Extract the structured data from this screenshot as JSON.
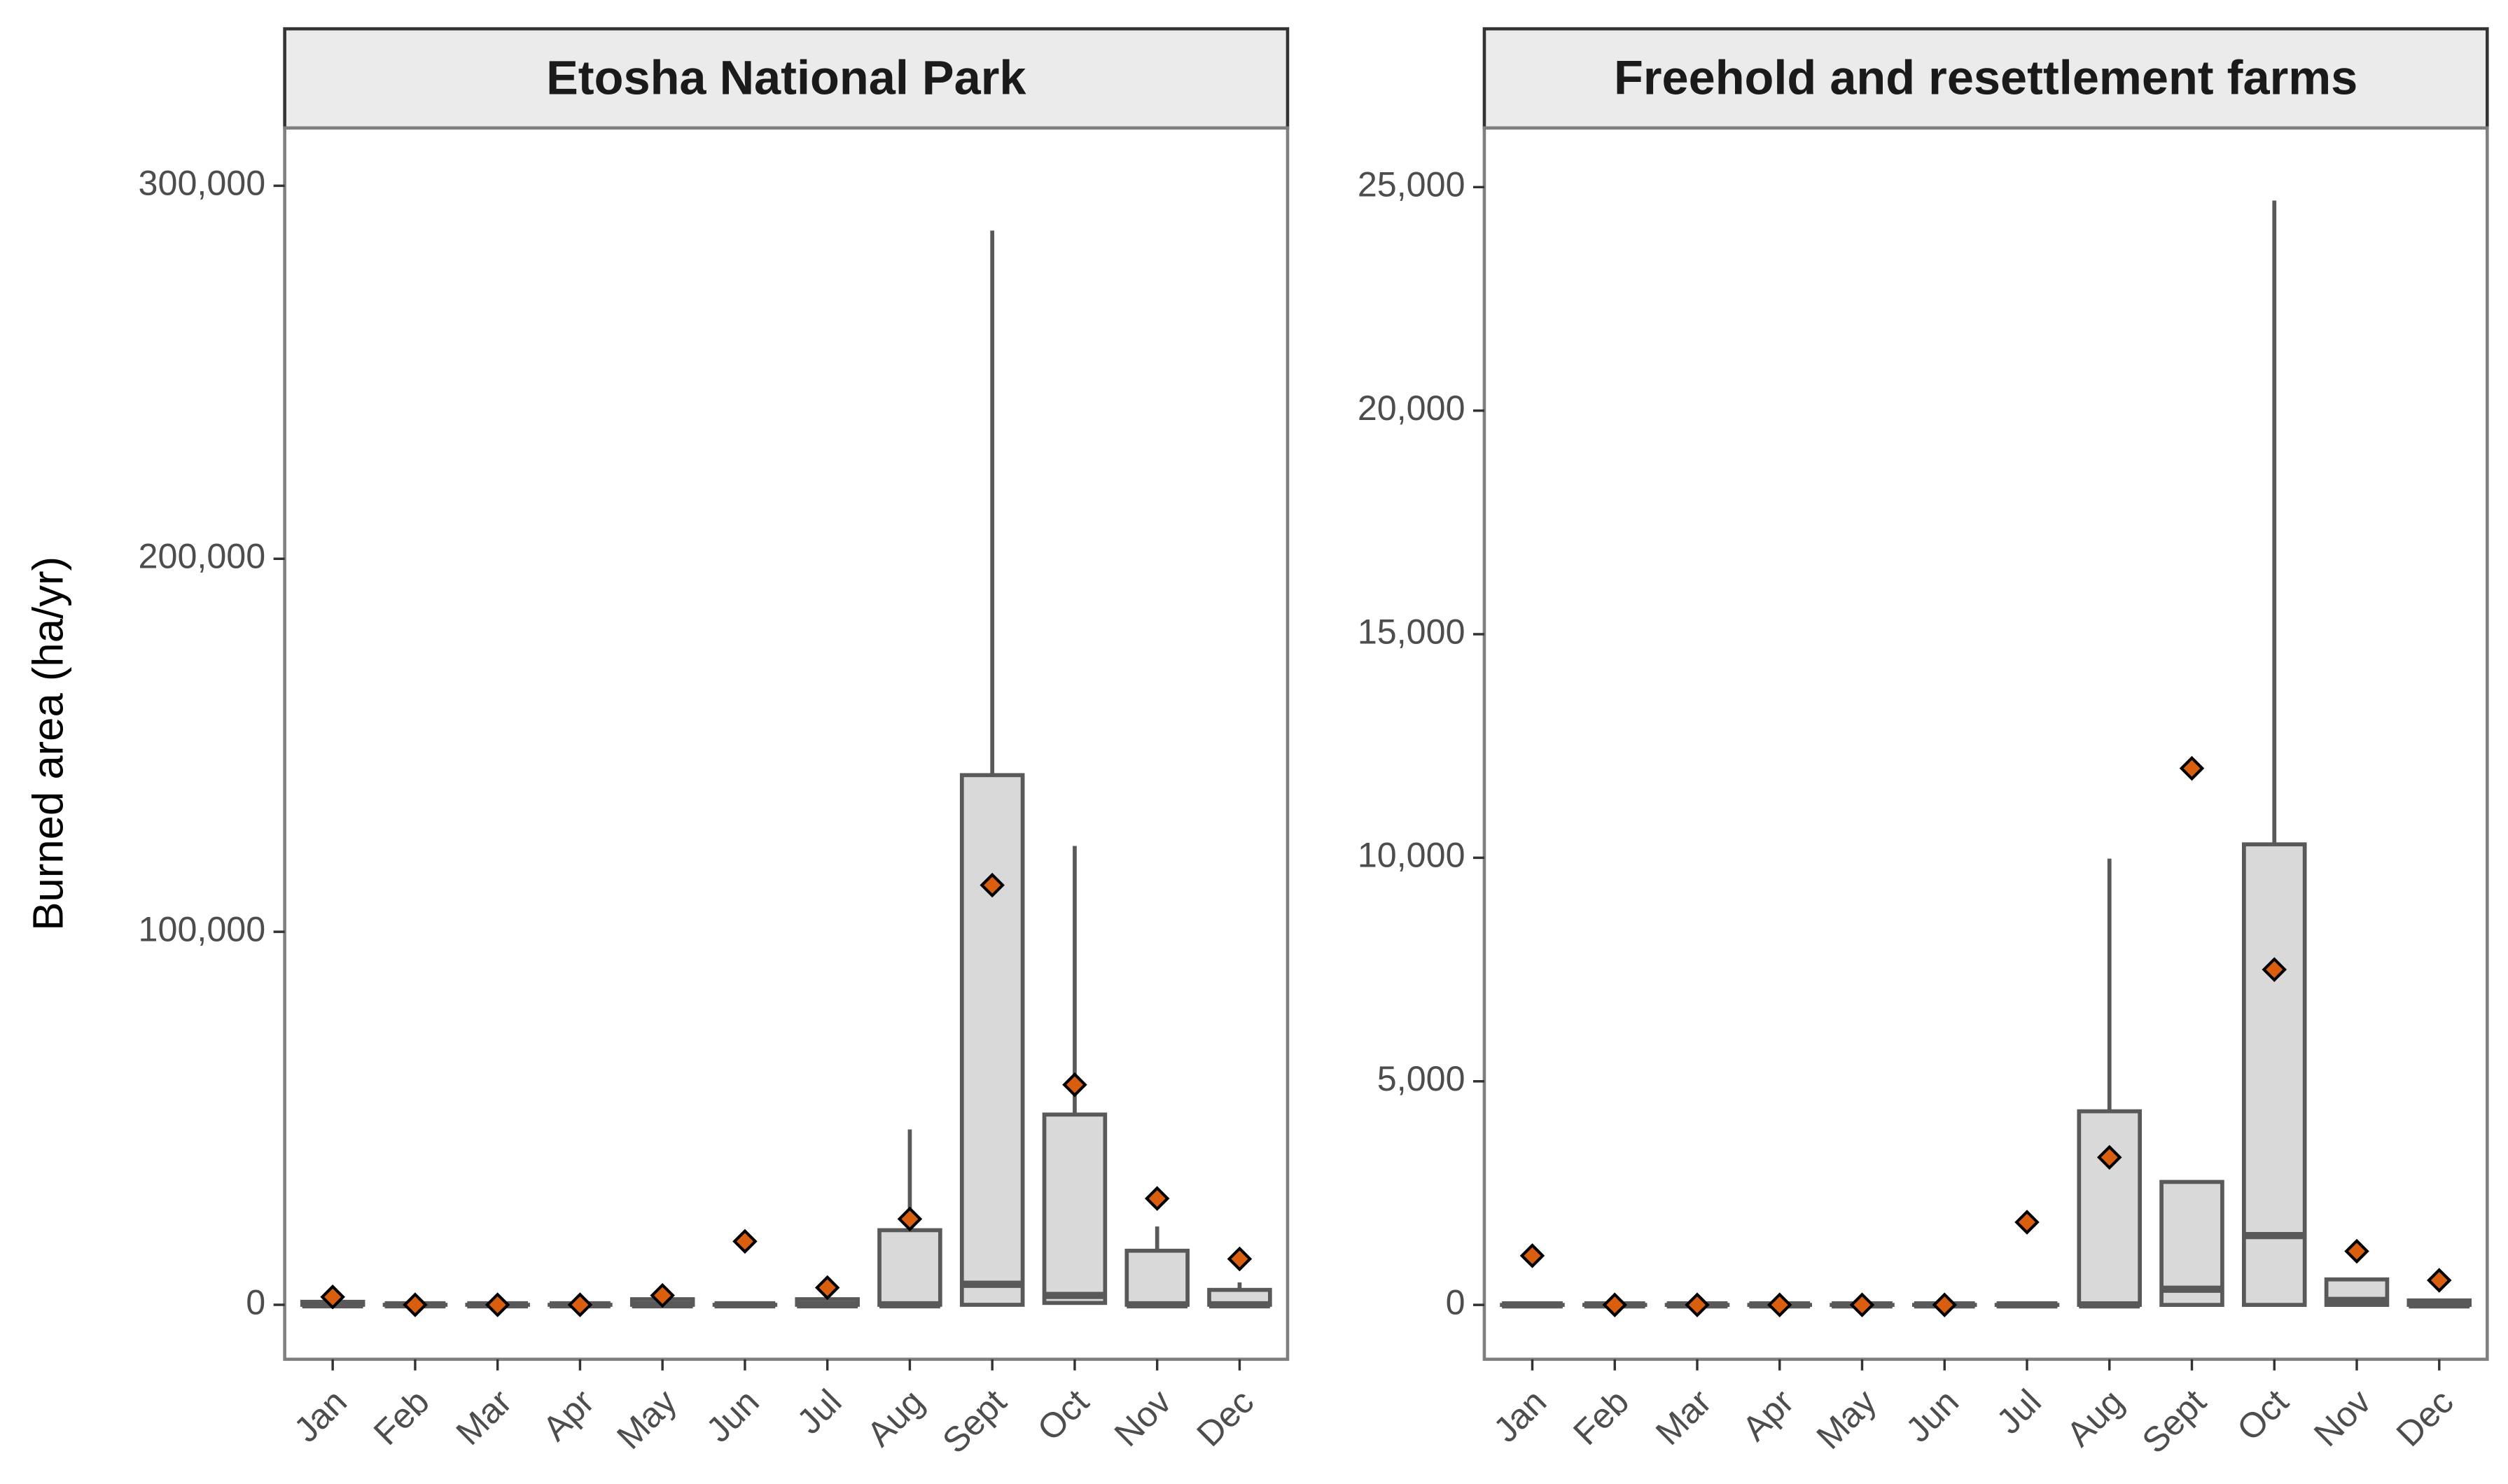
{
  "chart_data": [
    {
      "type": "box",
      "title": "Etosha National Park",
      "y_label": "Burned area (ha/yr)",
      "categories": [
        "Jan",
        "Feb",
        "Mar",
        "Apr",
        "May",
        "Jun",
        "Jul",
        "Aug",
        "Sept",
        "Oct",
        "Nov",
        "Dec"
      ],
      "min": [
        0,
        0,
        0,
        0,
        0,
        0,
        0,
        0,
        0,
        500,
        0,
        0
      ],
      "q1": [
        0,
        0,
        0,
        0,
        0,
        0,
        0,
        0,
        0,
        500,
        0,
        0
      ],
      "median": [
        0,
        0,
        0,
        0,
        0,
        0,
        0,
        0,
        5500,
        2500,
        0,
        0
      ],
      "q3": [
        800,
        0,
        0,
        0,
        1500,
        0,
        1500,
        20000,
        142000,
        51000,
        14500,
        4000
      ],
      "max": [
        1500,
        0,
        0,
        0,
        1500,
        0,
        2500,
        47000,
        288000,
        123000,
        21000,
        6000
      ],
      "mean": [
        2100,
        0,
        0,
        0,
        2500,
        17000,
        4600,
        23000,
        112500,
        59000,
        28500,
        12300
      ],
      "box_color": "#d9d9d9",
      "line_color": "#595959",
      "mean_color": "#d95f0e",
      "ylim": [
        -14600,
        315500
      ],
      "yticks": [
        0,
        {
          "value": 100000,
          "label": "100,000"
        },
        {
          "value": 200000,
          "label": "200,000"
        },
        {
          "value": 300000,
          "label": "300,000"
        }
      ]
    },
    {
      "type": "box",
      "title": "Freehold and resettlement farms",
      "categories": [
        "Jan",
        "Feb",
        "Mar",
        "Apr",
        "May",
        "Jun",
        "Jul",
        "Aug",
        "Sept",
        "Oct",
        "Nov",
        "Dec"
      ],
      "min": [
        0,
        0,
        0,
        0,
        0,
        0,
        0,
        0,
        0,
        0,
        0,
        0
      ],
      "q1": [
        0,
        0,
        0,
        0,
        0,
        0,
        0,
        0,
        0,
        0,
        0,
        0
      ],
      "median": [
        0,
        0,
        0,
        0,
        0,
        0,
        0,
        0,
        350,
        1550,
        100,
        0
      ],
      "q3": [
        0,
        0,
        0,
        0,
        0,
        0,
        0,
        4330,
        2750,
        10300,
        570,
        100
      ],
      "max": [
        0,
        0,
        0,
        0,
        0,
        0,
        0,
        9980,
        2750,
        24700,
        570,
        100
      ],
      "mean": [
        1100,
        0,
        0,
        0,
        0,
        0,
        1850,
        3300,
        12000,
        7500,
        1200,
        550
      ],
      "box_color": "#d9d9d9",
      "line_color": "#595959",
      "mean_color": "#d95f0e",
      "ylim": [
        -1216,
        26323
      ],
      "yticks": [
        0,
        {
          "value": 5000,
          "label": "5,000"
        },
        {
          "value": 10000,
          "label": "10,000"
        },
        {
          "value": 15000,
          "label": "15,000"
        },
        {
          "value": 20000,
          "label": "20,000"
        },
        {
          "value": 25000,
          "label": "25,000"
        }
      ]
    }
  ]
}
